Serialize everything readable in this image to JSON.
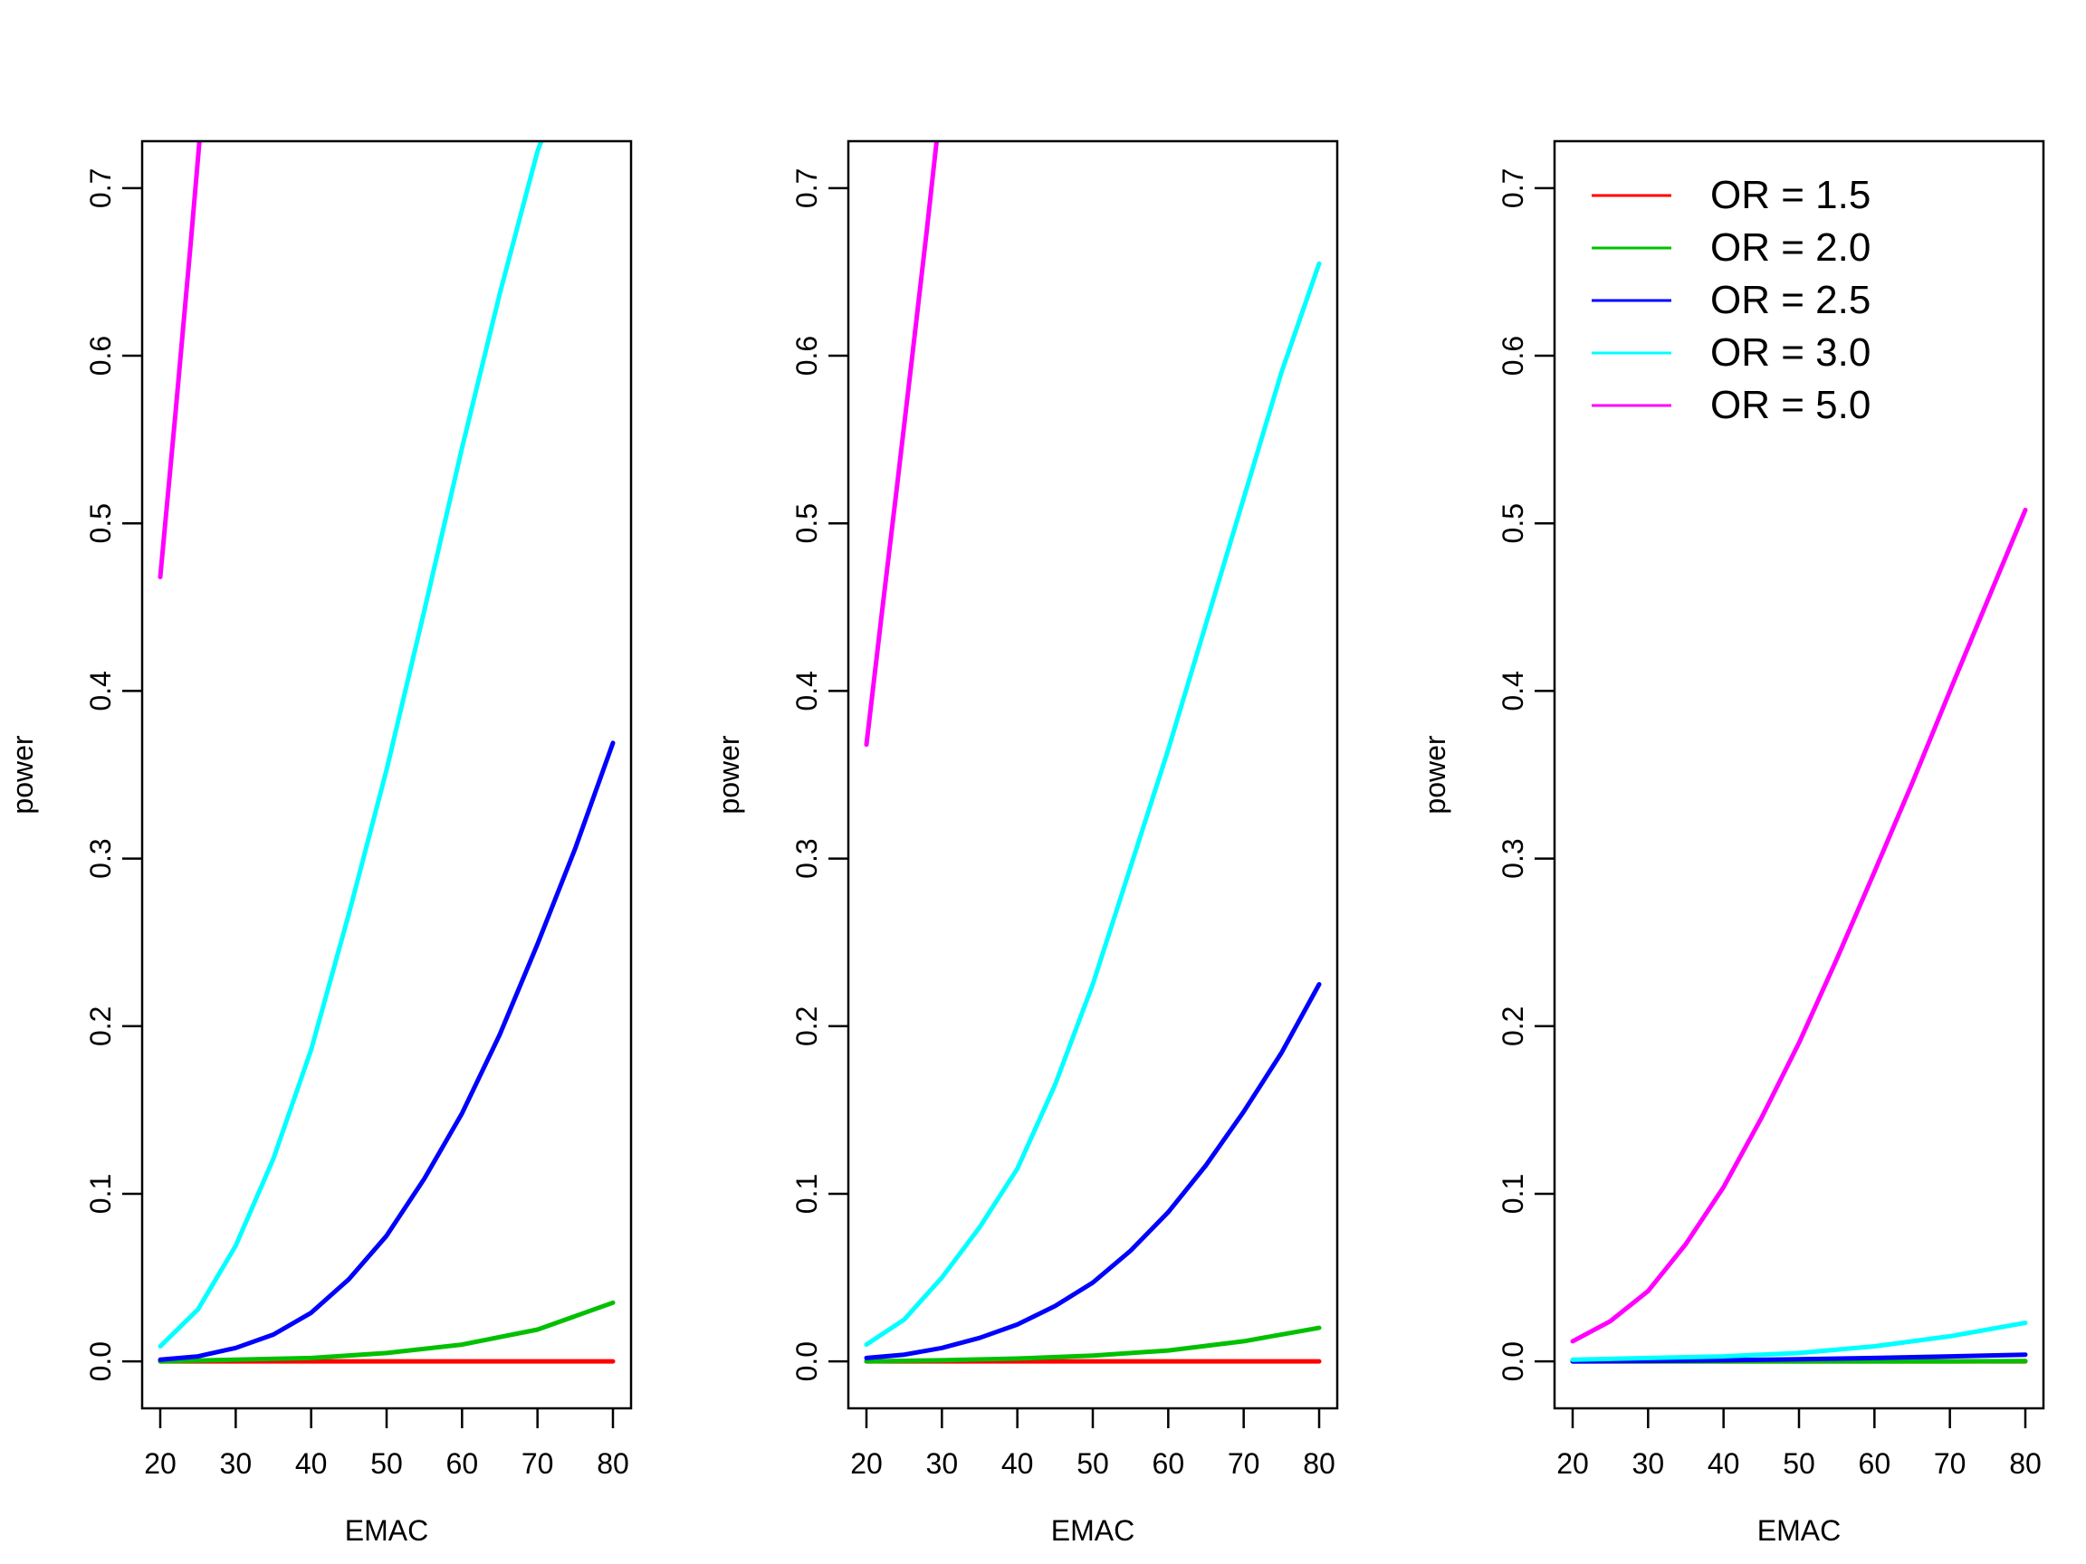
{
  "chart_data": [
    {
      "type": "line",
      "panel": 1,
      "xlabel": "EMAC",
      "ylabel": "power",
      "xlim": [
        17.6,
        82.4
      ],
      "ylim": [
        -0.028,
        0.728
      ],
      "xticks": [
        20,
        30,
        40,
        50,
        60,
        70,
        80
      ],
      "yticks": [
        0.0,
        0.1,
        0.2,
        0.3,
        0.4,
        0.5,
        0.6,
        0.7
      ],
      "ytick_labels": [
        "0.0",
        "0.1",
        "0.2",
        "0.3",
        "0.4",
        "0.5",
        "0.6",
        "0.7"
      ],
      "series": [
        {
          "name": "OR = 1.5",
          "color": "#ff0000",
          "x": [
            20,
            30,
            40,
            50,
            60,
            70,
            80
          ],
          "values": [
            0.0,
            0.0,
            0.0,
            0.0,
            0.0,
            0.0,
            0.0
          ]
        },
        {
          "name": "OR = 2.0",
          "color": "#00c000",
          "x": [
            20,
            30,
            40,
            50,
            60,
            70,
            80
          ],
          "values": [
            0.0,
            0.001,
            0.002,
            0.005,
            0.01,
            0.019,
            0.035
          ]
        },
        {
          "name": "OR = 2.5",
          "color": "#0000ff",
          "x": [
            20,
            25,
            30,
            35,
            40,
            45,
            50,
            55,
            60,
            65,
            70,
            75,
            80
          ],
          "values": [
            0.001,
            0.003,
            0.008,
            0.016,
            0.029,
            0.049,
            0.075,
            0.109,
            0.148,
            0.195,
            0.249,
            0.306,
            0.369
          ]
        },
        {
          "name": "OR = 3.0",
          "color": "#00ffff",
          "x": [
            20,
            25,
            30,
            35,
            40,
            45,
            50,
            55,
            60,
            65,
            70,
            70.5
          ],
          "values": [
            0.009,
            0.031,
            0.069,
            0.121,
            0.186,
            0.267,
            0.353,
            0.448,
            0.545,
            0.637,
            0.722,
            0.728
          ]
        },
        {
          "name": "OR = 5.0",
          "color": "#ff00ff",
          "x": [
            20,
            22,
            24,
            25.2
          ],
          "values": [
            0.468,
            0.565,
            0.665,
            0.728
          ]
        }
      ]
    },
    {
      "type": "line",
      "panel": 2,
      "xlabel": "EMAC",
      "ylabel": "power",
      "xlim": [
        17.6,
        82.4
      ],
      "ylim": [
        -0.028,
        0.728
      ],
      "xticks": [
        20,
        30,
        40,
        50,
        60,
        70,
        80
      ],
      "yticks": [
        0.0,
        0.1,
        0.2,
        0.3,
        0.4,
        0.5,
        0.6,
        0.7
      ],
      "ytick_labels": [
        "0.0",
        "0.1",
        "0.2",
        "0.3",
        "0.4",
        "0.5",
        "0.6",
        "0.7"
      ],
      "series": [
        {
          "name": "OR = 1.5",
          "color": "#ff0000",
          "x": [
            20,
            30,
            40,
            50,
            60,
            70,
            80
          ],
          "values": [
            0.0,
            0.0,
            0.0,
            0.0,
            0.0,
            0.0,
            0.0
          ]
        },
        {
          "name": "OR = 2.0",
          "color": "#00c000",
          "x": [
            20,
            30,
            40,
            50,
            60,
            70,
            80
          ],
          "values": [
            0.0,
            0.0007,
            0.0017,
            0.0035,
            0.0065,
            0.012,
            0.02
          ]
        },
        {
          "name": "OR = 2.5",
          "color": "#0000ff",
          "x": [
            20,
            25,
            30,
            35,
            40,
            45,
            50,
            55,
            60,
            65,
            70,
            75,
            80
          ],
          "values": [
            0.002,
            0.004,
            0.008,
            0.014,
            0.022,
            0.033,
            0.047,
            0.066,
            0.089,
            0.117,
            0.149,
            0.184,
            0.225
          ]
        },
        {
          "name": "OR = 3.0",
          "color": "#00ffff",
          "x": [
            20,
            25,
            30,
            35,
            40,
            45,
            50,
            55,
            60,
            65,
            70,
            75,
            80
          ],
          "values": [
            0.01,
            0.025,
            0.05,
            0.08,
            0.115,
            0.165,
            0.225,
            0.295,
            0.365,
            0.44,
            0.515,
            0.59,
            0.655
          ]
        },
        {
          "name": "OR = 5.0",
          "color": "#ff00ff",
          "x": [
            20,
            22,
            24,
            26,
            28,
            29.3
          ],
          "values": [
            0.368,
            0.445,
            0.52,
            0.597,
            0.675,
            0.728
          ]
        }
      ]
    },
    {
      "type": "line",
      "panel": 3,
      "xlabel": "EMAC",
      "ylabel": "power",
      "xlim": [
        17.6,
        82.4
      ],
      "ylim": [
        -0.028,
        0.728
      ],
      "xticks": [
        20,
        30,
        40,
        50,
        60,
        70,
        80
      ],
      "yticks": [
        0.0,
        0.1,
        0.2,
        0.3,
        0.4,
        0.5,
        0.6,
        0.7
      ],
      "ytick_labels": [
        "0.0",
        "0.1",
        "0.2",
        "0.3",
        "0.4",
        "0.5",
        "0.6",
        "0.7"
      ],
      "legend_position": "top-left",
      "legend": [
        {
          "label": "OR = 1.5",
          "color": "#ff0000"
        },
        {
          "label": "OR = 2.0",
          "color": "#00c000"
        },
        {
          "label": "OR = 2.5",
          "color": "#0000ff"
        },
        {
          "label": "OR = 3.0",
          "color": "#00ffff"
        },
        {
          "label": "OR = 5.0",
          "color": "#ff00ff"
        }
      ],
      "series": [
        {
          "name": "OR = 1.5",
          "color": "#ff0000",
          "x": [
            20,
            30,
            40,
            50,
            60,
            70,
            80
          ],
          "values": [
            0.0,
            0.0,
            0.0,
            0.0,
            0.0,
            0.0,
            0.0
          ]
        },
        {
          "name": "OR = 2.0",
          "color": "#00c000",
          "x": [
            20,
            30,
            40,
            50,
            60,
            70,
            80
          ],
          "values": [
            0.0,
            0.0,
            0.0,
            0.0,
            0.0,
            0.0,
            0.0002
          ]
        },
        {
          "name": "OR = 2.5",
          "color": "#0000ff",
          "x": [
            20,
            30,
            40,
            50,
            60,
            70,
            80
          ],
          "values": [
            0.0,
            0.0003,
            0.0007,
            0.0013,
            0.002,
            0.003,
            0.004
          ]
        },
        {
          "name": "OR = 3.0",
          "color": "#00ffff",
          "x": [
            20,
            30,
            40,
            50,
            60,
            70,
            80
          ],
          "values": [
            0.001,
            0.002,
            0.003,
            0.005,
            0.009,
            0.015,
            0.023
          ]
        },
        {
          "name": "OR = 5.0",
          "color": "#ff00ff",
          "x": [
            20,
            25,
            30,
            35,
            40,
            45,
            50,
            55,
            60,
            65,
            70,
            75,
            80
          ],
          "values": [
            0.012,
            0.024,
            0.042,
            0.07,
            0.104,
            0.145,
            0.19,
            0.24,
            0.292,
            0.345,
            0.4,
            0.454,
            0.508
          ]
        }
      ]
    }
  ]
}
